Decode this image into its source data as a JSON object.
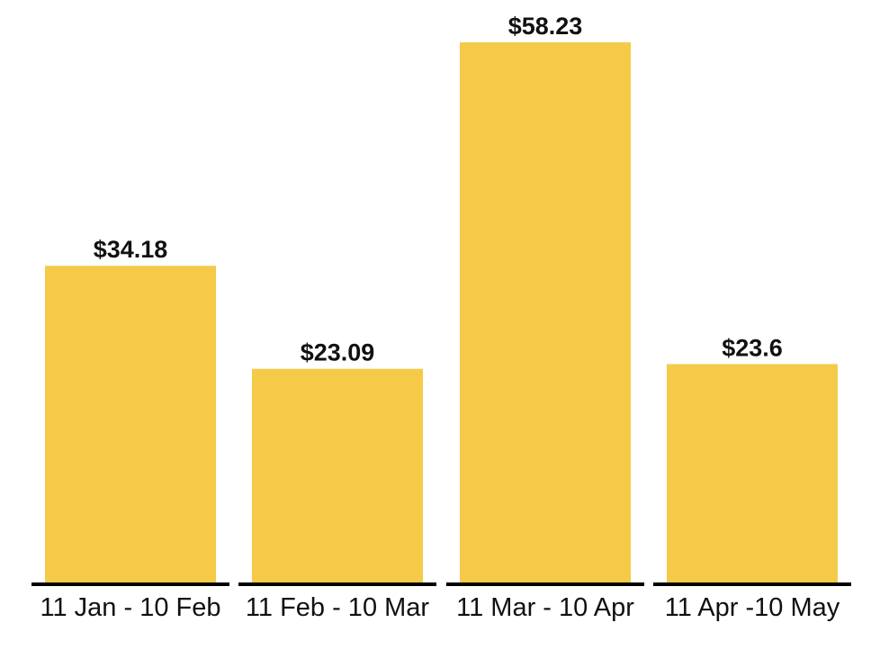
{
  "chart_data": {
    "type": "bar",
    "categories": [
      "11 Jan - 10 Feb",
      "11 Feb - 10 Mar",
      "11 Mar - 10 Apr",
      "11 Apr -10 May"
    ],
    "values": [
      34.18,
      23.09,
      58.23,
      23.6
    ],
    "data_labels": [
      "$34.18",
      "$23.09",
      "$58.23",
      "$23.6"
    ],
    "title": "",
    "xlabel": "",
    "ylabel": "",
    "ylim": [
      0,
      58.23
    ],
    "grid": false,
    "legend": "none",
    "bar_color": "#F5CA48",
    "axis_color": "#000000",
    "text_color": "#111111"
  }
}
